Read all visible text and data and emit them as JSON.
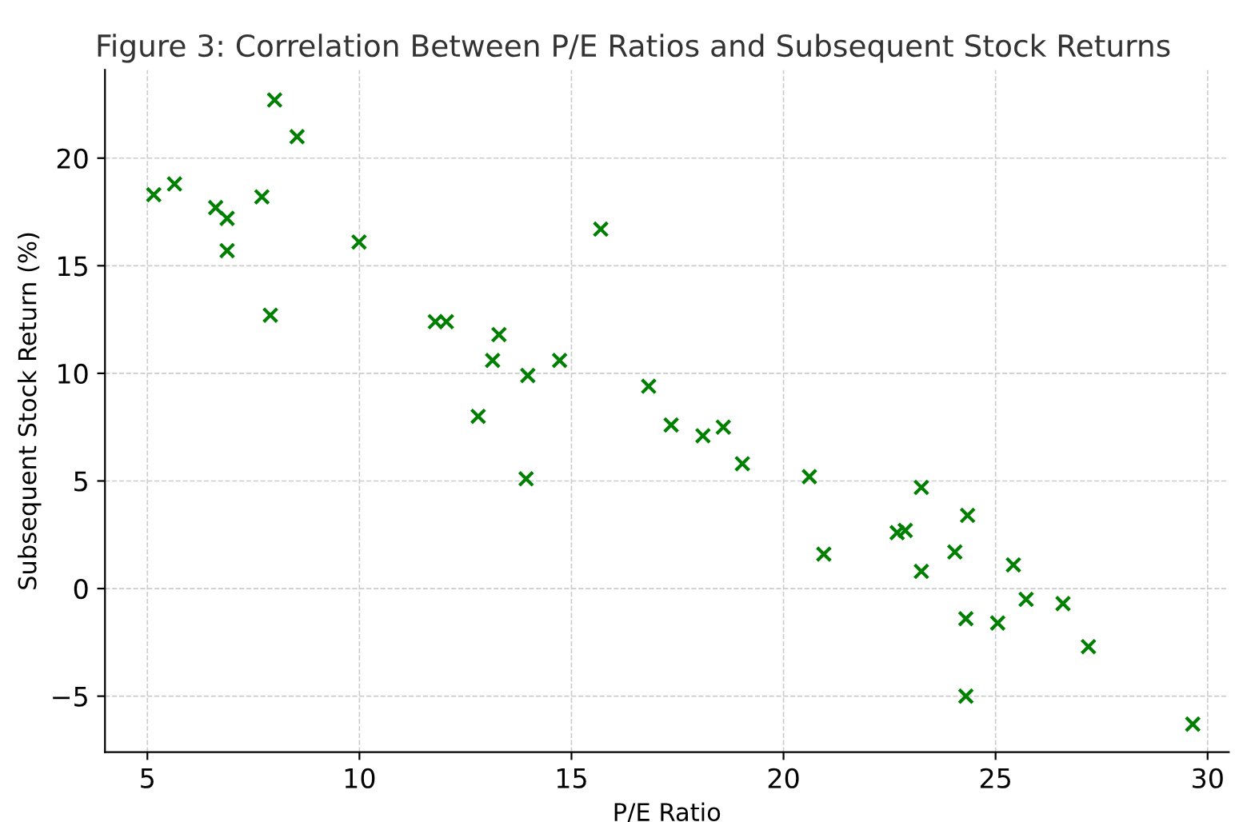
{
  "chart_data": {
    "type": "scatter",
    "title": "Figure 3: Correlation Between P/E Ratios and Subsequent Stock Returns",
    "xlabel": "P/E Ratio",
    "ylabel": "Subsequent Stock Return (%)",
    "x": [
      5.15,
      5.64,
      6.61,
      6.88,
      6.88,
      7.7,
      8.0,
      7.9,
      8.53,
      9.99,
      11.79,
      12.05,
      13.29,
      13.14,
      12.8,
      13.97,
      14.72,
      13.93,
      15.69,
      16.82,
      17.35,
      18.1,
      18.58,
      19.03,
      20.61,
      20.95,
      22.68,
      22.87,
      23.25,
      23.25,
      24.04,
      24.34,
      24.3,
      24.3,
      25.05,
      25.42,
      25.72,
      26.59,
      27.19,
      29.65
    ],
    "series": [
      {
        "color": "#008000",
        "values": [
          18.3,
          18.8,
          17.7,
          17.2,
          15.7,
          18.2,
          22.7,
          12.7,
          21.0,
          16.1,
          12.4,
          12.4,
          11.8,
          10.6,
          8.0,
          9.9,
          10.6,
          5.1,
          16.7,
          9.4,
          7.6,
          7.1,
          7.5,
          5.8,
          5.2,
          1.6,
          2.6,
          2.7,
          4.7,
          0.8,
          1.7,
          3.4,
          -1.4,
          -5.0,
          -1.6,
          1.1,
          -0.5,
          -0.7,
          -2.7,
          -6.3
        ]
      }
    ],
    "xlim": [
      4.0,
      30.5
    ],
    "ylim": [
      -7.6,
      24.1
    ],
    "xticks": [
      5,
      10,
      15,
      20,
      25,
      30
    ],
    "yticks": [
      -5,
      0,
      5,
      10,
      15,
      20
    ],
    "marker": "cross",
    "grid": true
  }
}
